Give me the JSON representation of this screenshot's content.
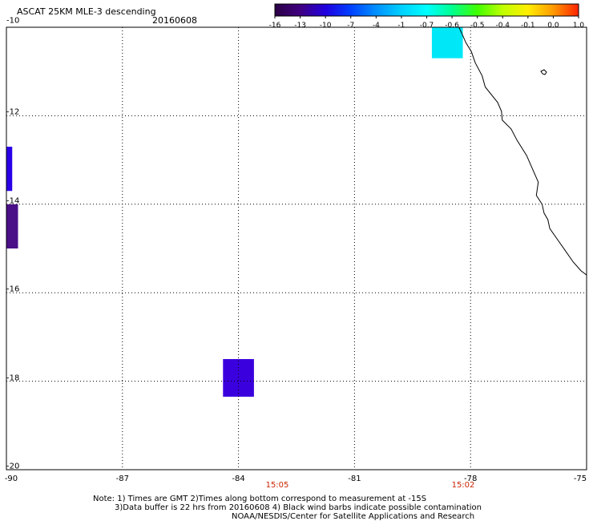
{
  "header": {
    "title": "ASCAT 25KM MLE-3 descending",
    "date": "20160608"
  },
  "colorbar": {
    "labels": [
      "-16",
      "-13",
      "-10",
      "-7",
      "-4",
      "-1",
      "-0.7",
      "-0.6",
      "-0.5",
      "-0.4",
      "-0.1",
      "0.0",
      "1.0"
    ],
    "colors": [
      "#2a0044",
      "#400080",
      "#2000e0",
      "#0040ff",
      "#0090ff",
      "#00d0ff",
      "#00ffff",
      "#00ff90",
      "#40ff00",
      "#c0ff00",
      "#ffee00",
      "#ff9900",
      "#ff2200"
    ]
  },
  "map": {
    "lat_labels": [
      "-10",
      "-12",
      "-14",
      "-16",
      "-18",
      "-20"
    ],
    "lon_labels": [
      "-90",
      "-87",
      "-84",
      "-81",
      "-78",
      "-75"
    ],
    "time_labels": [
      "15:05",
      "15:02"
    ],
    "cells": [
      {
        "name": "cell-cyan-nw-peru",
        "lon": [
          -79.0,
          -78.2
        ],
        "lat": [
          -10.0,
          -10.7
        ],
        "color": "#00e8f8"
      },
      {
        "name": "cell-blue-west",
        "lon": [
          -90.0,
          -89.85
        ],
        "lat": [
          -12.7,
          -13.7
        ],
        "color": "#2a00e8"
      },
      {
        "name": "cell-purple-west",
        "lon": [
          -90.0,
          -89.7
        ],
        "lat": [
          -14.0,
          -15.0
        ],
        "color": "#4a1088"
      },
      {
        "name": "cell-indigo-south",
        "lon": [
          -84.4,
          -83.6
        ],
        "lat": [
          -17.5,
          -18.35
        ],
        "color": "#3a00dd"
      }
    ]
  },
  "footer": {
    "note_line1": "Note: 1) Times are GMT 2)Times along bottom correspond to measurement at -15S",
    "note_line2": "3)Data buffer is 22 hrs from 20160608 4) Black wind barbs indicate possible contamination",
    "note_line3": "NOAA/NESDIS/Center for Satellite Applications and Research"
  }
}
